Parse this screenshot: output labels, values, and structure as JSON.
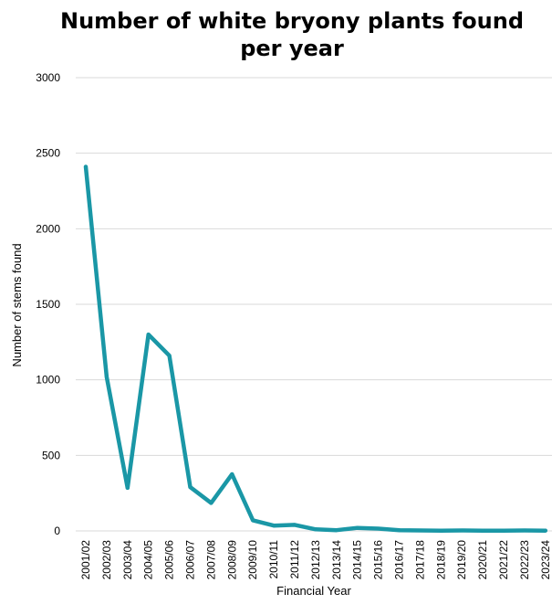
{
  "chart_data": {
    "type": "line",
    "title": "Number of white bryony plants found per year",
    "xlabel": "Financial Year",
    "ylabel": "Number of stems found",
    "ylim": [
      0,
      3000
    ],
    "yticks": [
      "0",
      "500",
      "1000",
      "1500",
      "2000",
      "2500",
      "3000"
    ],
    "grid": true,
    "legend": "none",
    "line_color": "#1a97a6",
    "categories": [
      "2001/02",
      "2002/03",
      "2003/04",
      "2004/05",
      "2005/06",
      "2006/07",
      "2007/08",
      "2008/09",
      "2009/10",
      "2010/11",
      "2011/12",
      "2012/13",
      "2013/14",
      "2014/15",
      "2015/16",
      "2016/17",
      "2017/18",
      "2018/19",
      "2019/20",
      "2020/21",
      "2021/22",
      "2022/23",
      "2023/24"
    ],
    "series": [
      {
        "values": [
          2410,
          1020,
          285,
          1300,
          1160,
          290,
          185,
          375,
          70,
          35,
          40,
          10,
          5,
          20,
          15,
          5,
          3,
          2,
          3,
          2,
          2,
          3,
          2
        ]
      }
    ]
  }
}
